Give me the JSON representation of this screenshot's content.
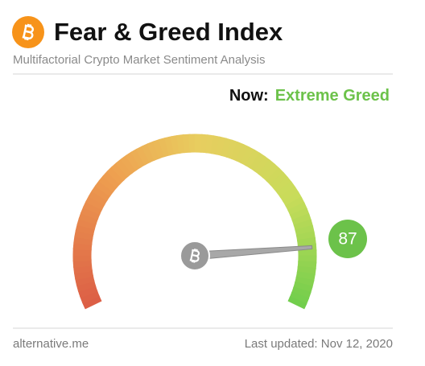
{
  "header": {
    "title": "Fear & Greed Index",
    "subtitle": "Multifactorial Crypto Market Sentiment Analysis"
  },
  "chart_data": {
    "type": "gauge",
    "status_label": "Now:",
    "status": "Extreme Greed",
    "value": 87,
    "ylim": [
      0,
      100
    ],
    "color": "#6cc24a"
  },
  "footer": {
    "source": "alternative.me",
    "updated": "Last updated: Nov 12, 2020"
  }
}
